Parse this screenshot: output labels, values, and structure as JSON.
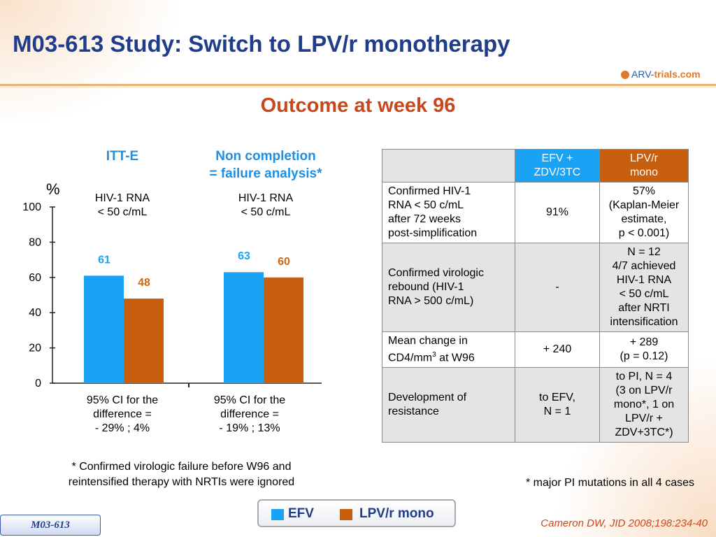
{
  "slide": {
    "title": "M03-613 Study: Switch to LPV/r monotherapy",
    "subtitle": "Outcome at week 96",
    "logo": {
      "part1": "ARV-",
      "part2": "trials",
      "part3": ".com"
    },
    "tag": "M03-613",
    "citation": "Cameron DW, JID 2008;198:234-40"
  },
  "panels": [
    {
      "head_line1": "ITT-E",
      "head_line2": "",
      "sub_line1": "HIV-1 RNA",
      "sub_line2": "< 50 c/mL",
      "ci_line1": "95% CI for the",
      "ci_line2": "difference =",
      "ci_line3": "- 29% ; 4%"
    },
    {
      "head_line1": "Non completion",
      "head_line2": "= failure analysis*",
      "sub_line1": "HIV-1 RNA",
      "sub_line2": "< 50 c/mL",
      "ci_line1": "95% CI for the",
      "ci_line2": "difference =",
      "ci_line3": "- 19% ; 13%"
    }
  ],
  "footnote_line1": "* Confirmed virologic failure before W96 and",
  "footnote_line2": "reintensified therapy with NRTIs were ignored",
  "chart_data": {
    "type": "bar",
    "categories": [
      "ITT-E",
      "Non completion = failure analysis*"
    ],
    "series": [
      {
        "name": "EFV",
        "values": [
          61,
          63
        ],
        "color": "#1aa3f5"
      },
      {
        "name": "LPV/r mono",
        "values": [
          48,
          60
        ],
        "color": "#c85f0e"
      }
    ],
    "ylabel": "%",
    "ylim": [
      0,
      100
    ],
    "yticks": [
      0,
      20,
      40,
      60,
      80,
      100
    ],
    "label_colors": [
      "#1aa3f5",
      "#d0670f"
    ]
  },
  "table": {
    "header_blank": "",
    "header_efv_line1": "EFV +",
    "header_efv_line2": "ZDV/3TC",
    "header_lpv_line1": "LPV/r",
    "header_lpv_line2": "mono",
    "header_efv_color": "#1aa3f5",
    "header_lpv_color": "#c85f0e",
    "rows": [
      {
        "label": [
          "Confirmed HIV-1",
          "RNA < 50 c/mL",
          "after 72 weeks",
          "post-simplification"
        ],
        "efv": [
          "91%"
        ],
        "lpv": [
          "57%",
          "(Kaplan-Meier",
          "estimate,",
          "p < 0.001)"
        ]
      },
      {
        "label": [
          "Confirmed virologic",
          "rebound (HIV-1",
          "RNA > 500 c/mL)"
        ],
        "efv": [
          "-"
        ],
        "lpv": [
          "N = 12",
          "4/7 achieved",
          "HIV-1 RNA",
          "< 50 c/mL",
          "after NRTI",
          "intensification"
        ]
      },
      {
        "label": [
          "Mean change in",
          "CD4/mm",
          "3",
          " at W96"
        ],
        "efv": [
          "+ 240"
        ],
        "lpv": [
          "+ 289",
          "(p = 0.12)"
        ]
      },
      {
        "label": [
          "Development of",
          "resistance"
        ],
        "efv": [
          "to EFV,",
          "N = 1"
        ],
        "lpv": [
          "to PI, N = 4",
          "(3 on LPV/r",
          "mono*, 1 on",
          "LPV/r +",
          "ZDV+3TC*)"
        ]
      }
    ],
    "note": "* major PI mutations in all 4 cases"
  },
  "legend": [
    {
      "label": "EFV",
      "color": "#1aa3f5"
    },
    {
      "label": "LPV/r mono",
      "color": "#c85f0e"
    }
  ]
}
